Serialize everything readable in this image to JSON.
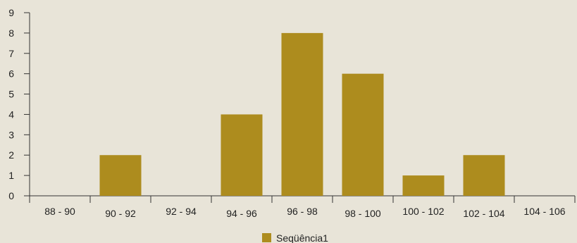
{
  "chart_data": {
    "type": "bar",
    "categories": [
      "88 - 90",
      "90 - 92",
      "92 - 94",
      "94 - 96",
      "96 - 98",
      "98 - 100",
      "100 - 102",
      "102 - 104",
      "104 - 106"
    ],
    "series": [
      {
        "name": "Seqüência1",
        "values": [
          0,
          2,
          0,
          4,
          8,
          6,
          1,
          2,
          0
        ],
        "color": "#ad8c1e"
      }
    ],
    "yticks": [
      0,
      1,
      2,
      3,
      4,
      5,
      6,
      7,
      8,
      9
    ],
    "ylim": [
      0,
      9
    ],
    "grid": false,
    "legend": "bottom-center",
    "background": "#e8e4d8"
  }
}
